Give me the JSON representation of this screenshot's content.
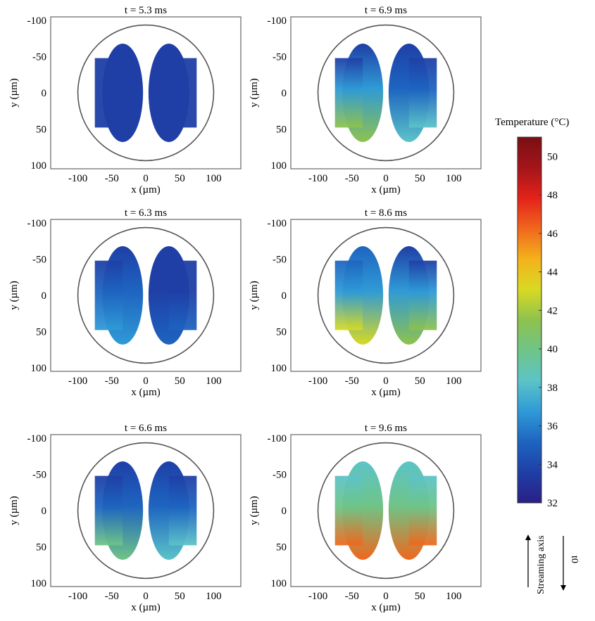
{
  "chart_data": {
    "type": "heatmap",
    "panels": [
      {
        "title": "t = 5.3 ms",
        "t_ms": 5.3,
        "sample_temps_C": {
          "left_top": 34,
          "left_bottom": 34,
          "right_top": 34,
          "right_bottom": 34
        }
      },
      {
        "title": "t = 6.3 ms",
        "t_ms": 6.3,
        "sample_temps_C": {
          "left_top": 34,
          "left_bottom": 36,
          "right_top": 34,
          "right_bottom": 35
        }
      },
      {
        "title": "t = 6.6 ms",
        "t_ms": 6.6,
        "sample_temps_C": {
          "left_top": 34,
          "left_bottom": 40,
          "right_top": 34,
          "right_bottom": 38
        }
      },
      {
        "title": "t = 6.9 ms",
        "t_ms": 6.9,
        "sample_temps_C": {
          "left_top": 34,
          "left_bottom": 41,
          "right_top": 34,
          "right_bottom": 38
        }
      },
      {
        "title": "t = 8.6 ms",
        "t_ms": 8.6,
        "sample_temps_C": {
          "left_top": 35,
          "left_bottom": 43,
          "right_top": 34,
          "right_bottom": 41
        }
      },
      {
        "title": "t = 9.6 ms",
        "t_ms": 9.6,
        "sample_temps_C": {
          "left_top": 38,
          "left_bottom": 47,
          "right_top": 38,
          "right_bottom": 47
        }
      }
    ],
    "xlabel": "x (µm)",
    "ylabel": "y (µm)",
    "xticks": [
      "-100",
      "-50",
      "0",
      "50",
      "100"
    ],
    "yticks": [
      "-100",
      "-50",
      "0",
      "50",
      "100"
    ],
    "xlim": [
      -140,
      140
    ],
    "ylim": [
      -105,
      105
    ],
    "y_axis_inverted": true,
    "colorbar": {
      "title": "Temperature (°C)",
      "range": [
        32,
        51
      ],
      "ticks": [
        "32",
        "34",
        "36",
        "38",
        "40",
        "42",
        "44",
        "46",
        "48",
        "50"
      ],
      "colors": [
        "#2a1f86",
        "#1f3fa6",
        "#1e64c0",
        "#2f9ad6",
        "#5cc3c8",
        "#6fc487",
        "#8ec24e",
        "#d8d923",
        "#f4b21d",
        "#f0671d",
        "#e3221a",
        "#a3151a",
        "#7a0f12"
      ]
    },
    "annotations": {
      "streaming_axis": "Streaming axis",
      "tau": "t0"
    }
  }
}
